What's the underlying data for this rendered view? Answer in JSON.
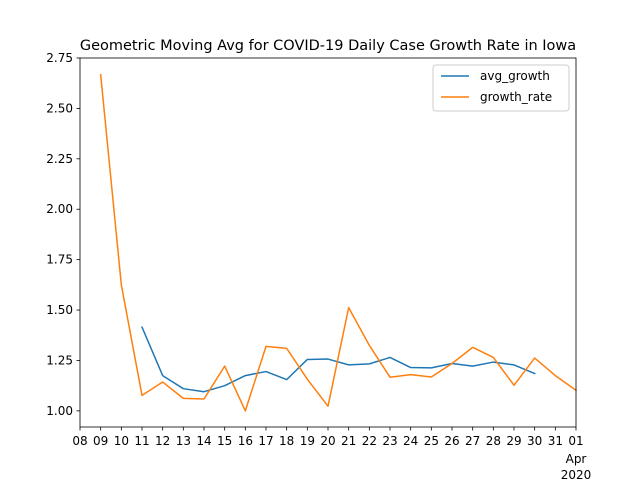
{
  "chart_data": {
    "type": "line",
    "title": "Geometric Moving Avg for COVID-19 Daily Case Growth Rate in Iowa",
    "xlabel": "",
    "ylabel": "",
    "x_tick_labels": [
      "08",
      "09",
      "10",
      "11",
      "12",
      "13",
      "14",
      "15",
      "16",
      "17",
      "18",
      "19",
      "20",
      "21",
      "22",
      "23",
      "24",
      "25",
      "26",
      "27",
      "28",
      "29",
      "30",
      "31",
      "01"
    ],
    "x_month_label": "Apr",
    "x_year_label": "2020",
    "x": [
      "2020-03-08",
      "2020-03-09",
      "2020-03-10",
      "2020-03-11",
      "2020-03-12",
      "2020-03-13",
      "2020-03-14",
      "2020-03-15",
      "2020-03-16",
      "2020-03-17",
      "2020-03-18",
      "2020-03-19",
      "2020-03-20",
      "2020-03-21",
      "2020-03-22",
      "2020-03-23",
      "2020-03-24",
      "2020-03-25",
      "2020-03-26",
      "2020-03-27",
      "2020-03-28",
      "2020-03-29",
      "2020-03-30",
      "2020-03-31",
      "2020-04-01"
    ],
    "xlim": [
      "2020-03-08",
      "2020-04-01"
    ],
    "ylim": [
      0.92,
      2.75
    ],
    "y_ticks": [
      1.0,
      1.25,
      1.5,
      1.75,
      2.0,
      2.25,
      2.5,
      2.75
    ],
    "y_tick_labels": [
      "1.00",
      "1.25",
      "1.50",
      "1.75",
      "2.00",
      "2.25",
      "2.50",
      "2.75"
    ],
    "grid": false,
    "legend_position": "top-right",
    "series": [
      {
        "name": "avg_growth",
        "color": "#1f77b4",
        "values": [
          null,
          null,
          null,
          1.415,
          1.175,
          1.11,
          1.095,
          1.125,
          1.175,
          1.195,
          1.155,
          1.255,
          1.257,
          1.228,
          1.233,
          1.265,
          1.215,
          1.213,
          1.235,
          1.222,
          1.242,
          1.228,
          1.185,
          null,
          null
        ]
      },
      {
        "name": "growth_rate",
        "color": "#ff7f0e",
        "values": [
          null,
          2.667,
          1.625,
          1.077,
          1.143,
          1.062,
          1.059,
          1.222,
          1.0,
          1.32,
          1.31,
          1.157,
          1.023,
          1.512,
          1.325,
          1.167,
          1.18,
          1.168,
          1.235,
          1.315,
          1.265,
          1.127,
          1.262,
          1.175,
          1.102
        ]
      }
    ]
  }
}
